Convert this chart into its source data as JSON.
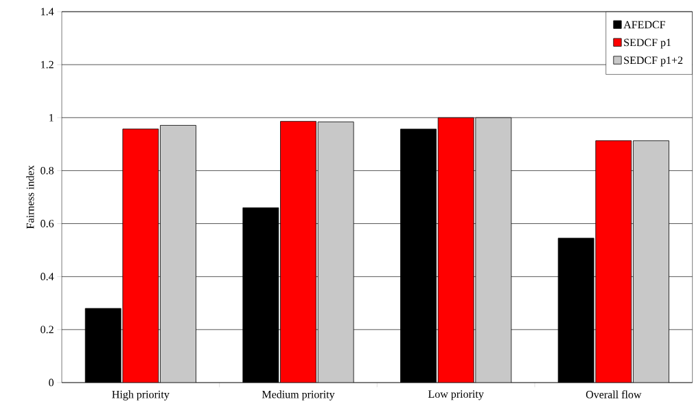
{
  "chart_data": {
    "type": "bar",
    "ylabel": "Fairness index",
    "categories": [
      "High priority",
      "Medium priority",
      "Low priority",
      "Overall flow"
    ],
    "series": [
      {
        "name": "AFEDCF",
        "color": "#000000",
        "values": [
          0.28,
          0.66,
          0.957,
          0.545
        ]
      },
      {
        "name": "SEDCF p1",
        "color": "#ff0000",
        "values": [
          0.957,
          0.986,
          1.0,
          0.913
        ]
      },
      {
        "name": "SEDCF p1+2",
        "color": "#c8c8c8",
        "values": [
          0.971,
          0.984,
          1.0,
          0.913
        ]
      }
    ],
    "ylim": [
      0,
      1.4
    ],
    "yticks": [
      0,
      0.2,
      0.4,
      0.6,
      0.8,
      1,
      1.2,
      1.4
    ],
    "grid": "y",
    "legend": "top right"
  }
}
